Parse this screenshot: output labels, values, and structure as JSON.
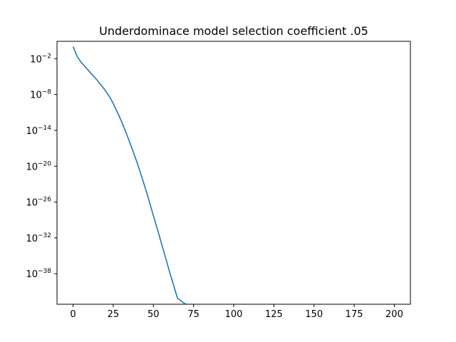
{
  "chart_data": {
    "type": "line",
    "title": "Underdominace model selection coefficient .05",
    "xlabel": "",
    "ylabel": "",
    "xscale": "linear",
    "yscale": "log",
    "xlim": [
      -10,
      210
    ],
    "ylim_log10": [
      -43.1,
      0.9
    ],
    "grid": false,
    "legend": "none",
    "xticks": [
      0,
      25,
      50,
      75,
      100,
      125,
      150,
      175,
      200
    ],
    "yticks": [
      {
        "base": "10",
        "exp": "−2",
        "value_log10": -2
      },
      {
        "base": "10",
        "exp": "−8",
        "value_log10": -8
      },
      {
        "base": "10",
        "exp": "−14",
        "value_log10": -14
      },
      {
        "base": "10",
        "exp": "−20",
        "value_log10": -20
      },
      {
        "base": "10",
        "exp": "−26",
        "value_log10": -26
      },
      {
        "base": "10",
        "exp": "−32",
        "value_log10": -32
      },
      {
        "base": "10",
        "exp": "−38",
        "value_log10": -38
      }
    ],
    "series": [
      {
        "color": "#1f77b4",
        "x": [
          0,
          1,
          2,
          3,
          5,
          8,
          10,
          13,
          15,
          18,
          20,
          23,
          25,
          28,
          30,
          33,
          35,
          38,
          40,
          43,
          45,
          48,
          50,
          53,
          55,
          58,
          60,
          63,
          65,
          68,
          70,
          71,
          71
        ],
        "log10_y": [
          0.0,
          -0.6,
          -1.3,
          -1.8,
          -2.6,
          -3.5,
          -4.1,
          -5.0,
          -5.6,
          -6.6,
          -7.3,
          -8.5,
          -9.5,
          -11.2,
          -12.4,
          -14.4,
          -15.8,
          -18.0,
          -19.5,
          -22.0,
          -23.7,
          -26.4,
          -28.3,
          -31.0,
          -32.9,
          -35.7,
          -37.6,
          -40.3,
          -42.1,
          -42.7,
          -43.1,
          -43.1,
          -44.5
        ]
      }
    ]
  }
}
